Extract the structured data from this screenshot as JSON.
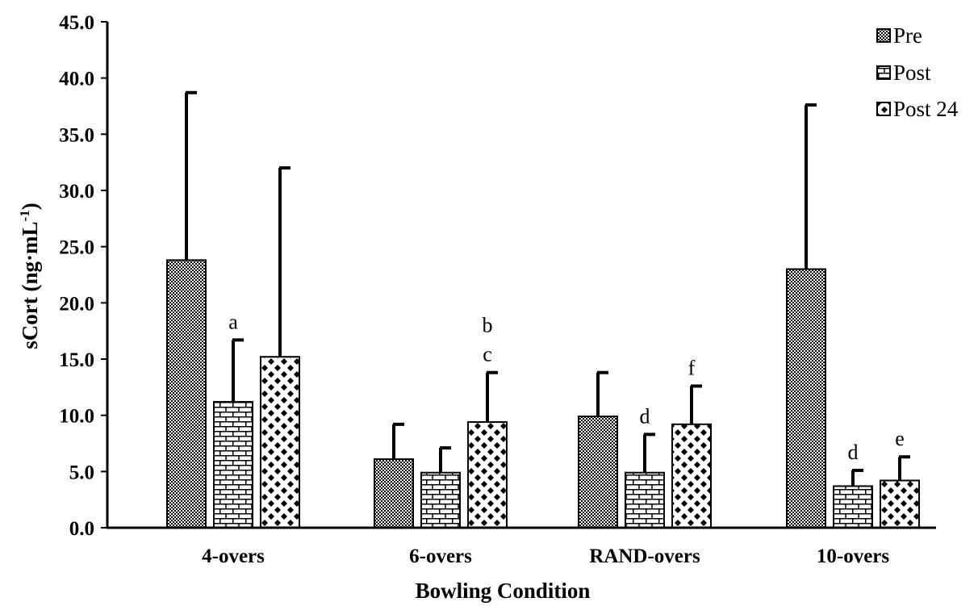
{
  "chart_data": {
    "type": "bar",
    "xlabel": "Bowling Condition",
    "ylabel": "sCort (ng·mL",
    "ylabel_superscript": "-1",
    "ylabel_close": ")",
    "ylim": [
      0,
      45
    ],
    "yticks": [
      "0.0",
      "5.0",
      "10.0",
      "15.0",
      "20.0",
      "25.0",
      "30.0",
      "35.0",
      "40.0",
      "45.0"
    ],
    "ytick_values": [
      0,
      5,
      10,
      15,
      20,
      25,
      30,
      35,
      40,
      45
    ],
    "grid": false,
    "legend_position": "top-right",
    "categories": [
      "4-overs",
      "6-overs",
      "RAND-overs",
      "10-overs"
    ],
    "series": [
      {
        "name": "Pre",
        "pattern": "dots",
        "values": [
          23.8,
          6.1,
          9.9,
          23.0
        ],
        "errors": [
          14.9,
          3.1,
          3.9,
          14.6
        ]
      },
      {
        "name": "Post",
        "pattern": "bricks",
        "values": [
          11.2,
          4.9,
          4.9,
          3.7
        ],
        "errors": [
          5.5,
          2.2,
          3.4,
          1.4
        ]
      },
      {
        "name": "Post 24",
        "pattern": "checker",
        "values": [
          15.2,
          9.4,
          9.2,
          4.2
        ],
        "errors": [
          16.8,
          4.4,
          3.4,
          2.1
        ]
      }
    ],
    "annotations": [
      {
        "category": 0,
        "series": 1,
        "lines": [
          "a"
        ]
      },
      {
        "category": 1,
        "series": 2,
        "lines": [
          "b",
          "c"
        ]
      },
      {
        "category": 2,
        "series": 1,
        "lines": [
          "d"
        ]
      },
      {
        "category": 2,
        "series": 2,
        "lines": [
          "f"
        ]
      },
      {
        "category": 3,
        "series": 1,
        "lines": [
          "d"
        ]
      },
      {
        "category": 3,
        "series": 2,
        "lines": [
          "e"
        ]
      }
    ]
  }
}
